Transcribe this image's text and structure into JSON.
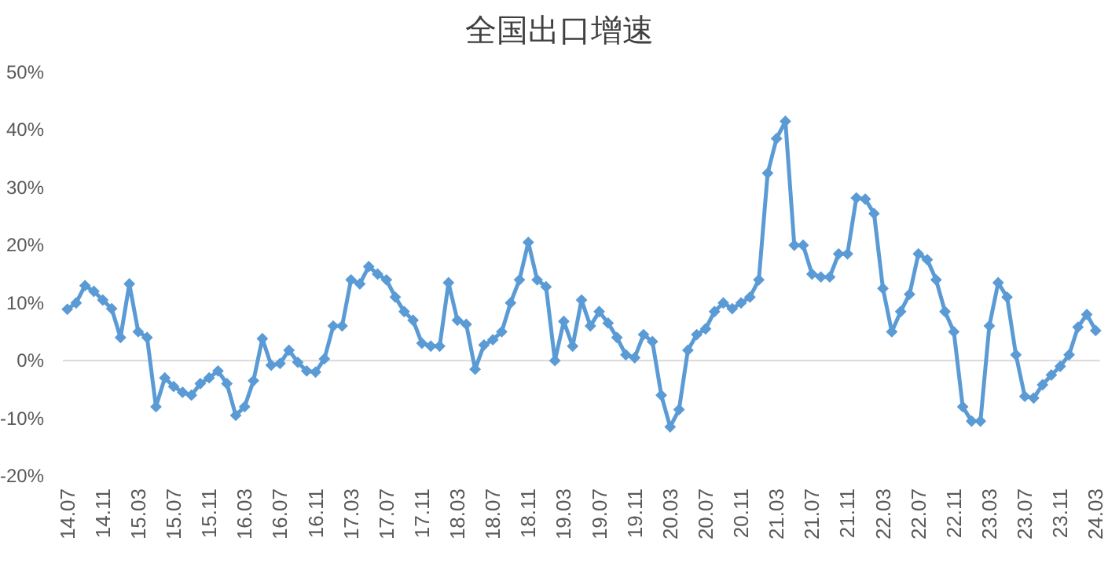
{
  "chart_data": {
    "type": "line",
    "title": "全国出口增速",
    "categories": [
      "14.07",
      null,
      null,
      null,
      "14.11",
      null,
      null,
      null,
      "15.03",
      null,
      null,
      null,
      "15.07",
      null,
      null,
      null,
      "15.11",
      null,
      null,
      null,
      "16.03",
      null,
      null,
      null,
      "16.07",
      null,
      null,
      null,
      "16.11",
      null,
      null,
      null,
      "17.03",
      null,
      null,
      null,
      "17.07",
      null,
      null,
      null,
      "17.11",
      null,
      null,
      null,
      "18.03",
      null,
      null,
      null,
      "18.07",
      null,
      null,
      null,
      "18.11",
      null,
      null,
      null,
      "19.03",
      null,
      null,
      null,
      "19.07",
      null,
      null,
      null,
      "19.11",
      null,
      null,
      null,
      "20.03",
      null,
      null,
      null,
      "20.07",
      null,
      null,
      null,
      "20.11",
      null,
      null,
      null,
      "21.03",
      null,
      null,
      null,
      "21.07",
      null,
      null,
      null,
      "21.11",
      null,
      null,
      null,
      "22.03",
      null,
      null,
      null,
      "22.07",
      null,
      null,
      null,
      "22.11",
      null,
      null,
      null,
      "23.03",
      null,
      null,
      null,
      "23.07",
      null,
      null,
      null,
      "23.11",
      null,
      null,
      null,
      "24.03"
    ],
    "series": [
      {
        "color": "#5b9bd5",
        "values": [
          8.9,
          10,
          13,
          12,
          10.5,
          9,
          4,
          13.3,
          5,
          4,
          -8,
          -3,
          -4.5,
          -5.5,
          -6,
          -4,
          -3,
          -1.8,
          -4,
          -9.5,
          -8,
          -3.5,
          3.8,
          -0.8,
          -0.5,
          1.8,
          -0.3,
          -1.8,
          -2,
          0.3,
          6,
          6,
          14,
          13.3,
          16.3,
          15,
          14,
          11,
          8.5,
          7,
          3,
          2.5,
          2.5,
          13.5,
          7,
          6.3,
          -1.5,
          2.7,
          3.6,
          5,
          10,
          14,
          20.5,
          14,
          12.8,
          0,
          6.8,
          2.5,
          10.5,
          6,
          8.5,
          6.5,
          4,
          1,
          0.5,
          4.5,
          3.3,
          -6,
          -11.5,
          -8.5,
          1.8,
          4.5,
          5.5,
          8.5,
          10,
          9,
          10,
          11,
          14,
          32.5,
          38.5,
          41.5,
          20,
          20,
          15,
          14.5,
          14.5,
          18.5,
          18.5,
          28.2,
          28,
          25.5,
          12.5,
          5,
          8.5,
          11.5,
          18.5,
          17.5,
          14,
          8.5,
          5,
          -8,
          -10.5,
          -10.5,
          6,
          13.5,
          11,
          1,
          -6.2,
          -6.5,
          -4.2,
          -2.5,
          -1,
          1,
          5.8,
          8,
          5.2
        ]
      }
    ],
    "ylim": [
      -20,
      50
    ],
    "yticks": [
      {
        "value": -20,
        "label": "-20%"
      },
      {
        "value": -10,
        "label": "-10%"
      },
      {
        "value": 0,
        "label": "0%"
      },
      {
        "value": 10,
        "label": "10%"
      },
      {
        "value": 20,
        "label": "20%"
      },
      {
        "value": 30,
        "label": "30%"
      },
      {
        "value": 40,
        "label": "40%"
      },
      {
        "value": 50,
        "label": "50%"
      }
    ],
    "ref_lines": [
      {
        "axis": "y",
        "value": 0,
        "color": "#d9d9d9"
      }
    ],
    "marker": "diamond",
    "line_style": "solid",
    "grid": false
  }
}
